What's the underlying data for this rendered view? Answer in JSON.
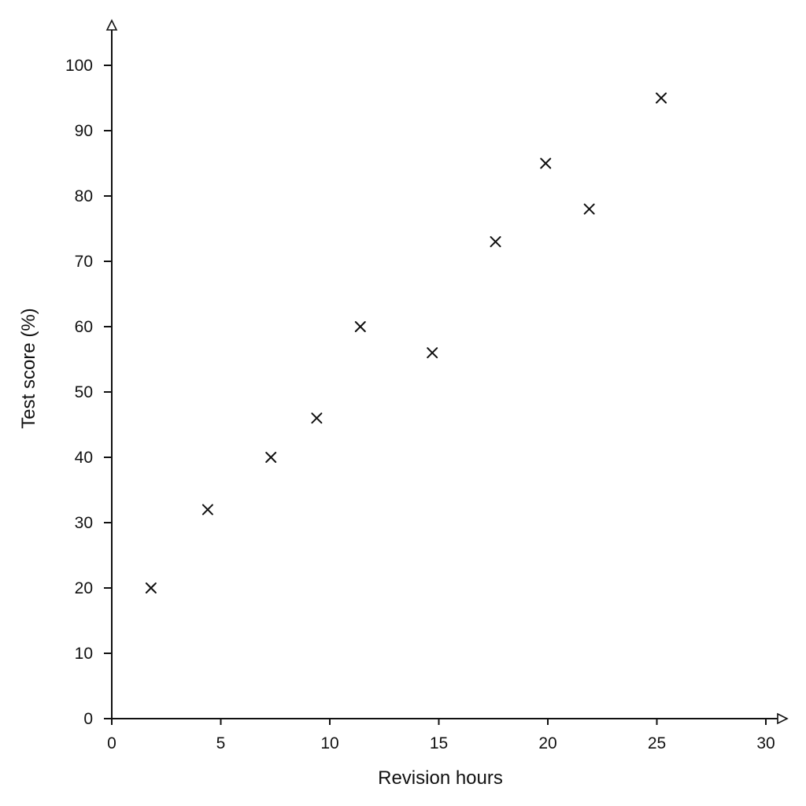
{
  "chart_data": {
    "type": "scatter",
    "title": "",
    "xlabel": "Revision hours",
    "ylabel": "Test score (%)",
    "xlim": [
      0,
      30
    ],
    "ylim": [
      0,
      100
    ],
    "xticks": [
      0,
      5,
      10,
      15,
      20,
      25,
      30
    ],
    "yticks": [
      0,
      10,
      20,
      30,
      40,
      50,
      60,
      70,
      80,
      90,
      100
    ],
    "grid": false,
    "legend": "none",
    "marker": "x",
    "color": "#111111",
    "series": [
      {
        "points": [
          {
            "x": 1.8,
            "y": 20
          },
          {
            "x": 4.4,
            "y": 32
          },
          {
            "x": 7.3,
            "y": 40
          },
          {
            "x": 9.4,
            "y": 46
          },
          {
            "x": 11.4,
            "y": 60
          },
          {
            "x": 14.7,
            "y": 56
          },
          {
            "x": 17.6,
            "y": 73
          },
          {
            "x": 19.9,
            "y": 85
          },
          {
            "x": 21.9,
            "y": 78
          },
          {
            "x": 25.2,
            "y": 95
          }
        ]
      }
    ]
  }
}
